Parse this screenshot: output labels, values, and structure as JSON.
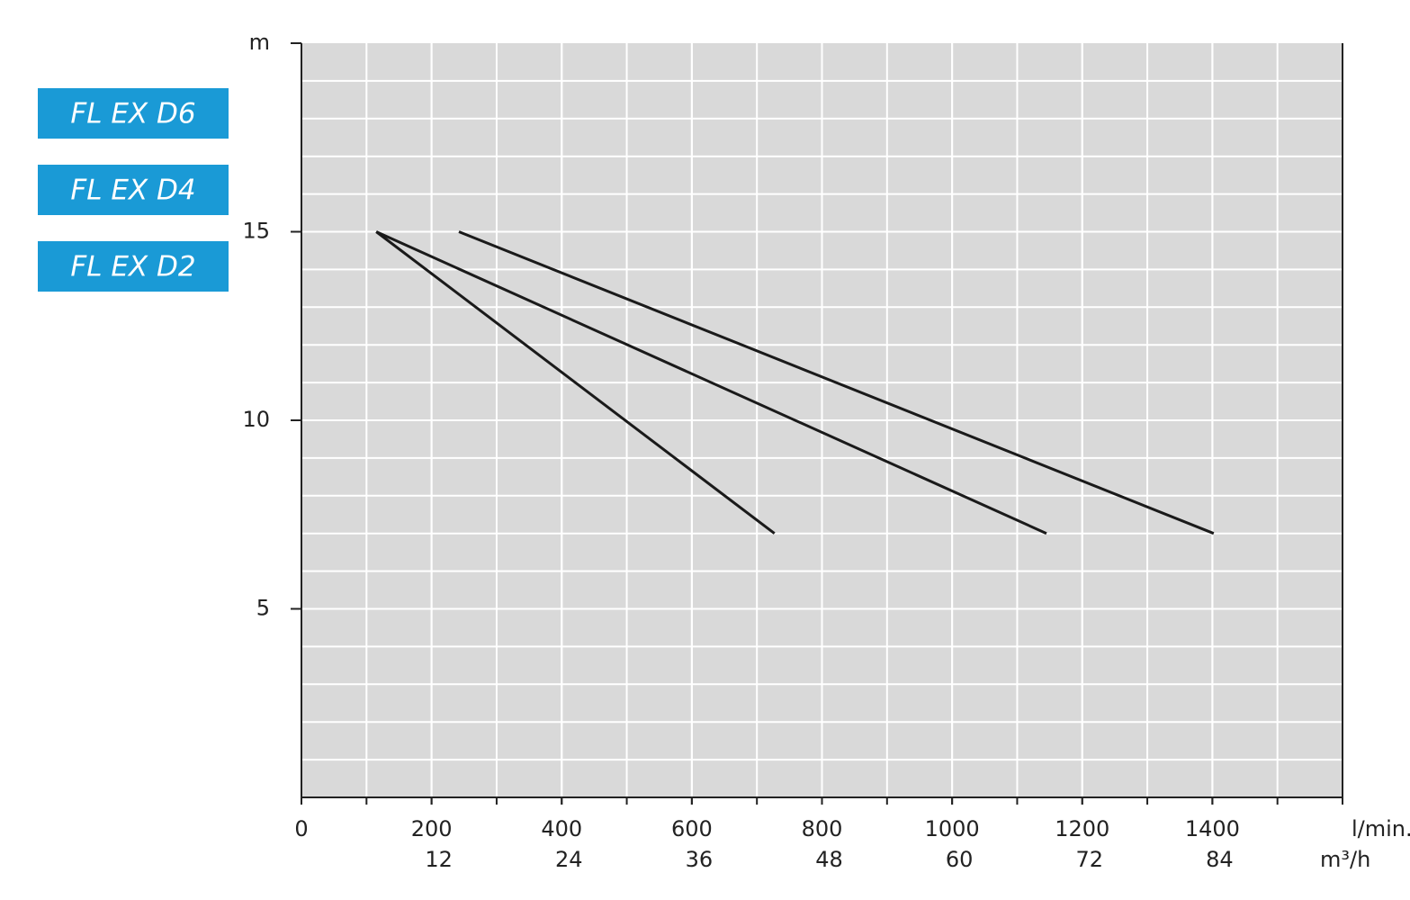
{
  "chart_data": {
    "type": "line",
    "y_label": "m",
    "x_label": "l/min.",
    "x2_label": "m³/h",
    "xlim": [
      0,
      1600
    ],
    "xticks": [
      0,
      200,
      400,
      600,
      800,
      1000,
      1200,
      1400
    ],
    "x2ticks": [
      12,
      24,
      36,
      48,
      60,
      72,
      84
    ],
    "ylim": [
      0,
      20
    ],
    "yticks": [
      5,
      10,
      15
    ],
    "grid": true,
    "plot_background": "#d9d9d9",
    "legend_color": "#1a9ad6",
    "legend_position": "left",
    "series": [
      {
        "name": "FL EX D6",
        "color": "#1a1a1a",
        "x": [
          242,
          1402
        ],
        "values": [
          15,
          7
        ]
      },
      {
        "name": "FL EX D4",
        "color": "#1a1a1a",
        "x": [
          115,
          1145
        ],
        "values": [
          15,
          7
        ]
      },
      {
        "name": "FL EX D2",
        "color": "#1a1a1a",
        "x": [
          115,
          727
        ],
        "values": [
          15,
          7
        ]
      }
    ]
  }
}
